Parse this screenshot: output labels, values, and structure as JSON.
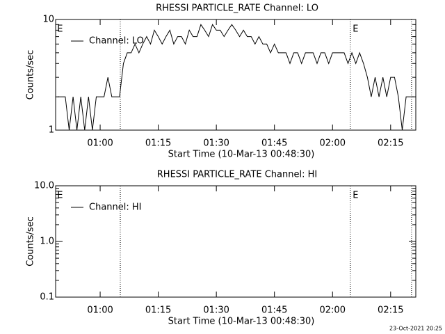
{
  "chart_data": [
    {
      "type": "line",
      "title": "RHESSI PARTICLE_RATE Channel: LO",
      "xlabel": "Start Time (10-Mar-13 00:48:30)",
      "ylabel": "Counts/sec",
      "x": [
        49,
        50,
        51,
        52,
        53,
        54,
        55,
        56,
        57,
        58,
        59,
        60,
        61,
        62,
        63,
        64,
        65,
        66,
        67,
        68,
        69,
        70,
        71,
        72,
        73,
        74,
        75,
        76,
        77,
        78,
        79,
        80,
        81,
        82,
        83,
        84,
        85,
        86,
        87,
        88,
        89,
        90,
        91,
        92,
        93,
        94,
        95,
        96,
        97,
        98,
        99,
        100,
        101,
        102,
        103,
        104,
        105,
        106,
        107,
        108,
        109,
        110,
        111,
        112,
        113,
        114,
        115,
        116,
        117,
        118,
        119,
        120,
        121,
        122,
        123,
        124,
        125,
        126,
        127,
        128,
        129,
        130,
        131,
        132,
        133,
        134,
        135,
        136,
        137,
        138,
        139,
        140,
        141
      ],
      "series": [
        {
          "name": "Channel: LO",
          "color": "#000000",
          "values": [
            2,
            2,
            2,
            1,
            2,
            1,
            2,
            1,
            2,
            1,
            2,
            2,
            2,
            3,
            2,
            2,
            2,
            4,
            5,
            5,
            6,
            5,
            6,
            7,
            6,
            8,
            7,
            6,
            7,
            8,
            6,
            7,
            7,
            6,
            8,
            7,
            7,
            9,
            8,
            7,
            9,
            8,
            8,
            7,
            8,
            9,
            8,
            7,
            8,
            7,
            7,
            6,
            7,
            6,
            6,
            5,
            6,
            5,
            5,
            5,
            4,
            5,
            5,
            4,
            5,
            5,
            5,
            4,
            5,
            5,
            4,
            5,
            5,
            5,
            5,
            4,
            5,
            4,
            5,
            4,
            3,
            2,
            3,
            2,
            3,
            2,
            3,
            3,
            2,
            1,
            2,
            2,
            2
          ]
        }
      ],
      "xlim": [
        48.5,
        141.5
      ],
      "xticks": [
        {
          "value": 60,
          "label": "01:00"
        },
        {
          "value": 75,
          "label": "01:15"
        },
        {
          "value": 90,
          "label": "01:30"
        },
        {
          "value": 105,
          "label": "01:45"
        },
        {
          "value": 120,
          "label": "02:00"
        },
        {
          "value": 135,
          "label": "02:15"
        }
      ],
      "ylim": [
        1,
        10
      ],
      "yticks": [
        1,
        10
      ],
      "log_y": true,
      "vlines": [
        65.2,
        124.6,
        140.4
      ],
      "annotations": [
        {
          "text": "E",
          "x": 48.9
        },
        {
          "text": "E",
          "x": 125.2
        }
      ]
    },
    {
      "type": "line",
      "title": "RHESSI PARTICLE_RATE Channel: HI",
      "xlabel": "Start Time (10-Mar-13 00:48:30)",
      "ylabel": "Counts/sec",
      "x": [],
      "series": [
        {
          "name": "Channel: HI",
          "color": "#000000",
          "values": []
        }
      ],
      "xlim": [
        48.5,
        141.5
      ],
      "xticks": [
        {
          "value": 60,
          "label": "01:00"
        },
        {
          "value": 75,
          "label": "01:15"
        },
        {
          "value": 90,
          "label": "01:30"
        },
        {
          "value": 105,
          "label": "01:45"
        },
        {
          "value": 120,
          "label": "02:00"
        },
        {
          "value": 135,
          "label": "02:15"
        }
      ],
      "ylim": [
        0.1,
        10
      ],
      "yticks": [
        0.1,
        {
          "value": 1,
          "label": "1.0"
        },
        {
          "value": 10,
          "label": "10.0"
        }
      ],
      "log_y": true,
      "vlines": [
        65.2,
        124.6,
        140.4
      ],
      "annotations": [
        {
          "text": "E",
          "x": 48.9
        },
        {
          "text": "E",
          "x": 125.2
        }
      ]
    }
  ],
  "footer": "23-Oct-2021 20:25"
}
